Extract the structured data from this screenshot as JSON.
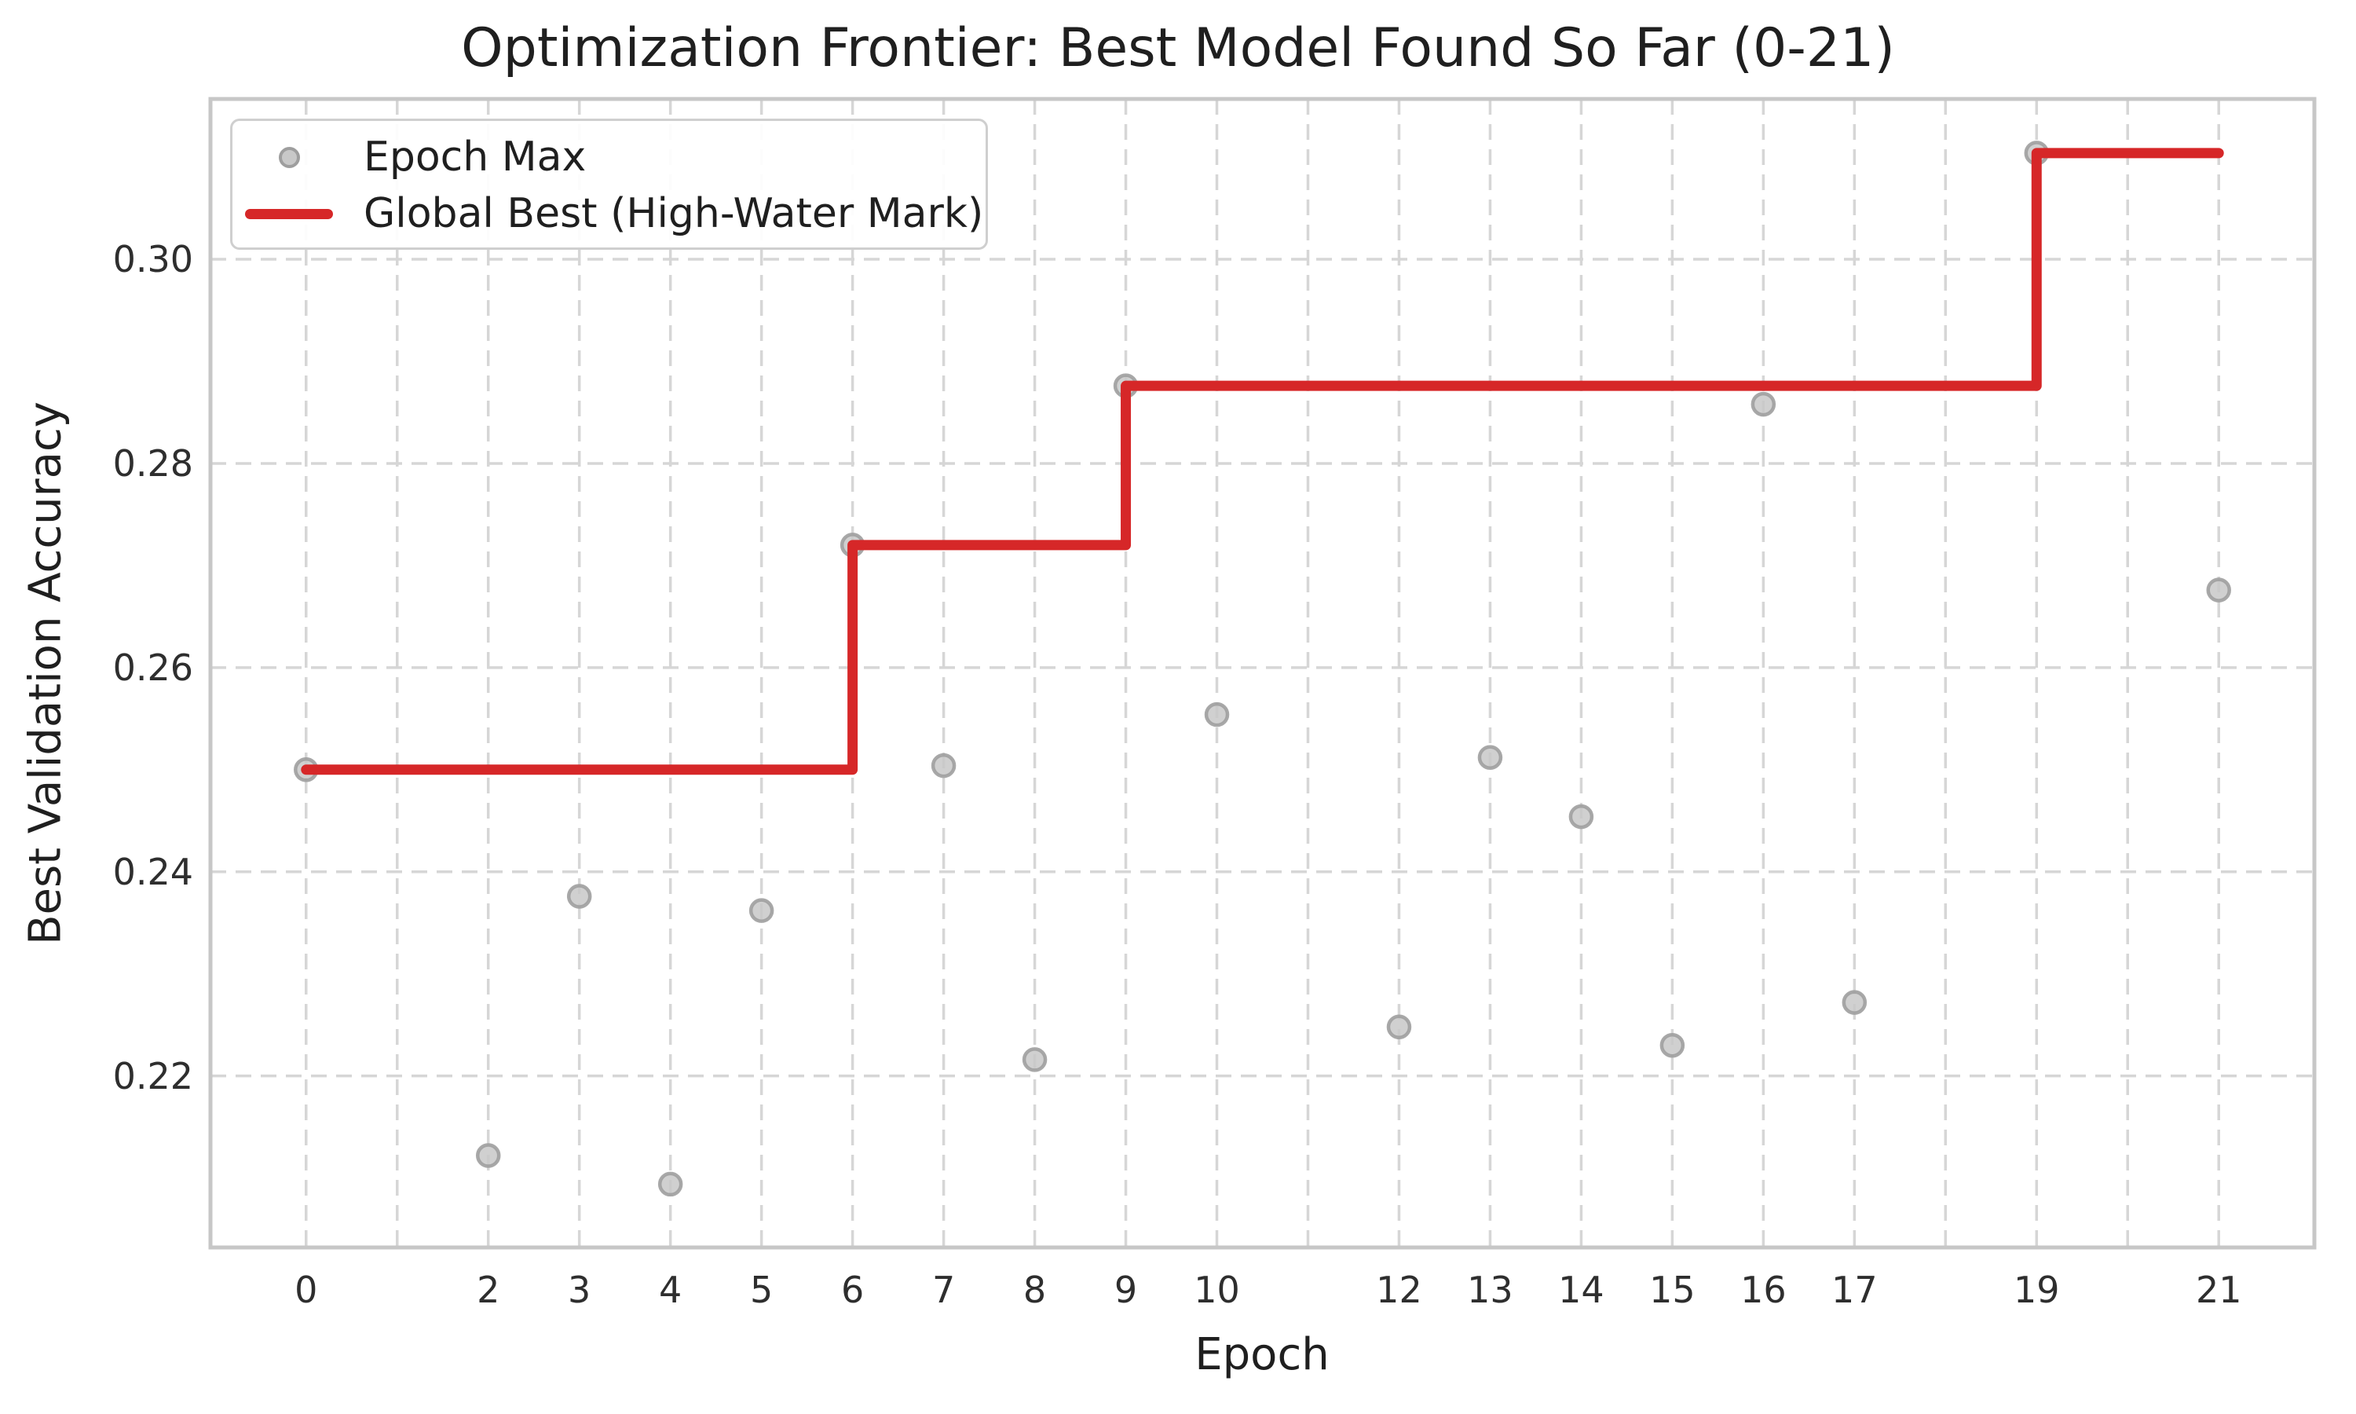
{
  "chart_data": {
    "type": "scatter",
    "title": "Optimization Frontier: Best Model Found So Far (0-21)",
    "xlabel": "Epoch",
    "ylabel": "Best Validation Accuracy",
    "xlim": [
      -1.05,
      22.05
    ],
    "ylim": [
      0.2032,
      0.3157
    ],
    "grid": true,
    "grid_style": "dashed",
    "legend_position": "upper left",
    "x_gridline_positions": [
      0,
      1,
      2,
      3,
      4,
      5,
      6,
      7,
      8,
      9,
      10,
      11,
      12,
      13,
      14,
      15,
      16,
      17,
      18,
      19,
      20,
      21
    ],
    "x_ticks": {
      "positions": [
        0,
        2,
        3,
        4,
        5,
        6,
        7,
        8,
        9,
        10,
        12,
        13,
        14,
        15,
        16,
        17,
        19,
        21
      ],
      "labels": [
        "0",
        "2",
        "3",
        "4",
        "5",
        "6",
        "7",
        "8",
        "9",
        "10",
        "12",
        "13",
        "14",
        "15",
        "16",
        "17",
        "19",
        "21"
      ]
    },
    "y_ticks": {
      "positions": [
        0.22,
        0.24,
        0.26,
        0.28,
        0.3
      ],
      "labels": [
        "0.22",
        "0.24",
        "0.26",
        "0.28",
        "0.30"
      ]
    },
    "series": [
      {
        "name": "Epoch Max",
        "type": "scatter",
        "marker": "circle",
        "x": [
          0,
          2,
          3,
          4,
          5,
          6,
          7,
          8,
          9,
          10,
          12,
          13,
          14,
          15,
          16,
          17,
          19,
          21
        ],
        "y": [
          0.25,
          0.2122,
          0.2376,
          0.2094,
          0.2362,
          0.272,
          0.2504,
          0.2216,
          0.2876,
          0.2554,
          0.2248,
          0.2512,
          0.2454,
          0.223,
          0.2858,
          0.2272,
          0.3104,
          0.2676
        ]
      },
      {
        "name": "Global Best (High-Water Mark)",
        "type": "step-line",
        "points": [
          [
            0,
            0.25
          ],
          [
            6,
            0.25
          ],
          [
            6,
            0.272
          ],
          [
            9,
            0.272
          ],
          [
            9,
            0.2876
          ],
          [
            19,
            0.2876
          ],
          [
            19,
            0.3104
          ],
          [
            21,
            0.3104
          ]
        ]
      }
    ],
    "colors": {
      "best_line": "#d62728",
      "scatter_fill": "#c8c8c8",
      "scatter_edge": "#9e9e9e",
      "grid": "#d6d6d6",
      "spine": "#c7c7c7",
      "text": "#1f1f1f",
      "tick_text": "#2e2e2e",
      "background": "#ffffff"
    }
  }
}
